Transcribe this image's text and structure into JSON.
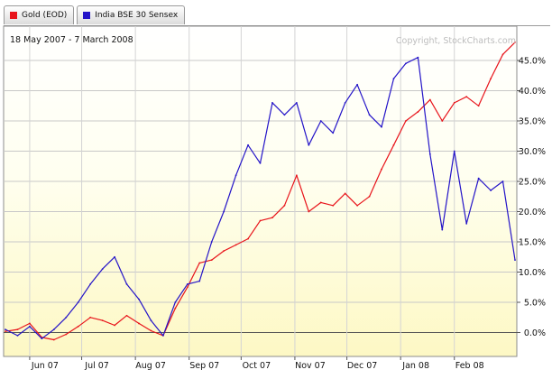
{
  "legend": [
    {
      "label": "Gold (EOD)",
      "color": "#e8141b"
    },
    {
      "label": "India BSE 30 Sensex",
      "color": "#2414c8"
    }
  ],
  "date_range": "18 May 2007 - 7 March 2008",
  "copyright": "Copyright, StockCharts.com",
  "chart_data": {
    "type": "line",
    "ylabel_unit": "%",
    "ylim": [
      -5,
      50
    ],
    "y_ticks": [
      "0.0%",
      "5.0%",
      "10.0%",
      "15.0%",
      "20.0%",
      "25.0%",
      "30.0%",
      "35.0%",
      "40.0%",
      "45.0%"
    ],
    "x_ticks": [
      "Jun 07",
      "Jul 07",
      "Aug 07",
      "Sep 07",
      "Oct 07",
      "Nov 07",
      "Dec 07",
      "Jan 08",
      "Feb 08"
    ],
    "grid": true,
    "background": "gradient white to pale yellow",
    "x": [
      "2007-05-18",
      "2007-05-25",
      "2007-06-01",
      "2007-06-08",
      "2007-06-15",
      "2007-06-22",
      "2007-06-29",
      "2007-07-06",
      "2007-07-13",
      "2007-07-20",
      "2007-07-27",
      "2007-08-03",
      "2007-08-10",
      "2007-08-17",
      "2007-08-24",
      "2007-08-31",
      "2007-09-07",
      "2007-09-14",
      "2007-09-21",
      "2007-09-28",
      "2007-10-05",
      "2007-10-12",
      "2007-10-19",
      "2007-10-26",
      "2007-11-02",
      "2007-11-09",
      "2007-11-16",
      "2007-11-23",
      "2007-11-30",
      "2007-12-07",
      "2007-12-14",
      "2007-12-21",
      "2007-12-28",
      "2008-01-04",
      "2008-01-11",
      "2008-01-18",
      "2008-01-25",
      "2008-02-01",
      "2008-02-08",
      "2008-02-15",
      "2008-02-22",
      "2008-02-29",
      "2008-03-07"
    ],
    "series": [
      {
        "name": "Gold (EOD)",
        "color": "#e8141b",
        "values": [
          0.2,
          0.5,
          1.5,
          -0.8,
          -1.2,
          -0.3,
          1.0,
          2.5,
          2.0,
          1.2,
          2.8,
          1.5,
          0.3,
          -0.5,
          4.0,
          7.5,
          11.5,
          12.0,
          13.5,
          14.5,
          15.5,
          18.5,
          19.0,
          21.0,
          26.0,
          20.0,
          21.5,
          21.0,
          23.0,
          21.0,
          22.5,
          27.0,
          31.0,
          35.0,
          36.5,
          38.5,
          35.0,
          38.0,
          39.0,
          37.5,
          42.0,
          46.0,
          48.0
        ]
      },
      {
        "name": "India BSE 30 Sensex",
        "color": "#2414c8",
        "values": [
          0.5,
          -0.5,
          1.0,
          -1.0,
          0.5,
          2.5,
          5.0,
          8.0,
          10.5,
          12.5,
          8.0,
          5.5,
          2.0,
          -0.5,
          5.0,
          8.0,
          8.5,
          15.0,
          20.0,
          26.0,
          31.0,
          28.0,
          38.0,
          36.0,
          38.0,
          31.0,
          35.0,
          33.0,
          38.0,
          41.0,
          36.0,
          34.0,
          42.0,
          44.5,
          45.5,
          29.5,
          17.0,
          30.0,
          18.0,
          25.5,
          23.5,
          25.0,
          12.0
        ]
      }
    ]
  }
}
